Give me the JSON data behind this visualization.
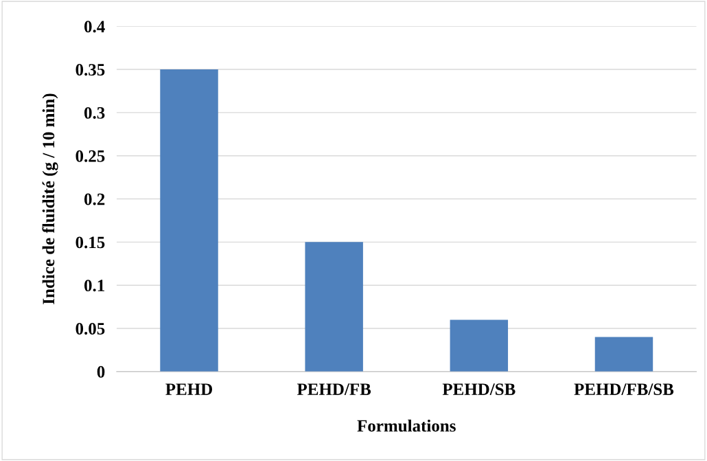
{
  "chart_data": {
    "type": "bar",
    "xlabel": "Formulations",
    "ylabel": "Indice de fluidité (g / 10 min)",
    "categories": [
      "PEHD",
      "PEHD/FB",
      "PEHD/SB",
      "PEHD/FB/SB"
    ],
    "values": [
      0.35,
      0.15,
      0.06,
      0.04
    ],
    "color": "#4f81bd",
    "ylim": [
      0,
      0.4
    ],
    "yticks": [
      {
        "value": 0,
        "label": "0"
      },
      0.05,
      0.1,
      0.15,
      0.2,
      0.25,
      0.3,
      0.35,
      0.4
    ],
    "grid": "y"
  }
}
